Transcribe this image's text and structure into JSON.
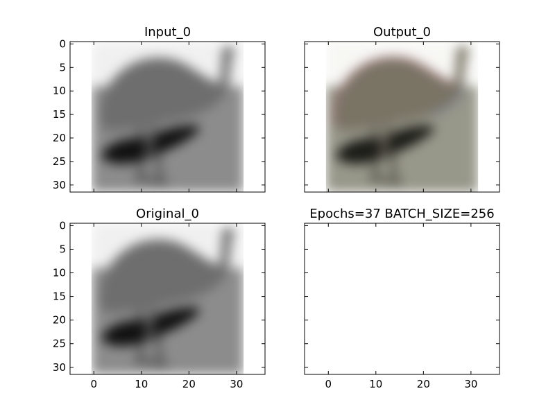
{
  "chart_data": [
    {
      "type": "image",
      "title": "Input_0",
      "image_kind": "grayscale",
      "image_extent": {
        "x": [
          -0.5,
          31.5
        ],
        "y": [
          31.5,
          -0.5
        ]
      },
      "xlim": [
        -5,
        36
      ],
      "ylim": [
        31.5,
        -0.5
      ],
      "xticks": [
        0,
        10,
        20,
        30
      ],
      "yticks": [
        0,
        5,
        10,
        15,
        20,
        25,
        30
      ],
      "show_xtick_labels": false,
      "show_ytick_labels": true
    },
    {
      "type": "image",
      "title": "Output_0",
      "image_kind": "color",
      "image_extent": {
        "x": [
          -0.5,
          31.5
        ],
        "y": [
          31.5,
          -0.5
        ]
      },
      "xlim": [
        -5,
        36
      ],
      "ylim": [
        31.5,
        -0.5
      ],
      "xticks": [
        0,
        10,
        20,
        30
      ],
      "yticks": [
        0,
        5,
        10,
        15,
        20,
        25,
        30
      ],
      "show_xtick_labels": false,
      "show_ytick_labels": false
    },
    {
      "type": "image",
      "title": "Original_0",
      "image_kind": "grayscale",
      "image_extent": {
        "x": [
          -0.5,
          31.5
        ],
        "y": [
          31.5,
          -0.5
        ]
      },
      "xlim": [
        -5,
        36
      ],
      "ylim": [
        31.5,
        -0.5
      ],
      "xticks": [
        0,
        10,
        20,
        30
      ],
      "yticks": [
        0,
        5,
        10,
        15,
        20,
        25,
        30
      ],
      "show_xtick_labels": true,
      "show_ytick_labels": true
    },
    {
      "type": "image",
      "title": "Epochs=37 BATCH_SIZE=256",
      "image_kind": "empty",
      "xlim": [
        -5,
        36
      ],
      "ylim": [
        31.5,
        -0.5
      ],
      "xticks": [
        0,
        10,
        20,
        30
      ],
      "yticks": [
        0,
        5,
        10,
        15,
        20,
        25,
        30
      ],
      "show_xtick_labels": true,
      "show_ytick_labels": false
    }
  ],
  "colors": {
    "background": "#ffffff",
    "frame": "#000000",
    "gray_sky": "#f0f0f0",
    "gray_ground": "#8c8c8c",
    "gray_body": "#6e6e6e",
    "gray_wing": "#111111",
    "gray_leg": "#555555",
    "color_sky": "#f7f7f4",
    "color_ground": "#97978a",
    "color_body": "#7a7465",
    "color_wing": "#1c1c18",
    "color_leg": "#5c5a50",
    "color_fringe_red": "#a05a6a",
    "color_fringe_blue": "#5a6aa8"
  }
}
